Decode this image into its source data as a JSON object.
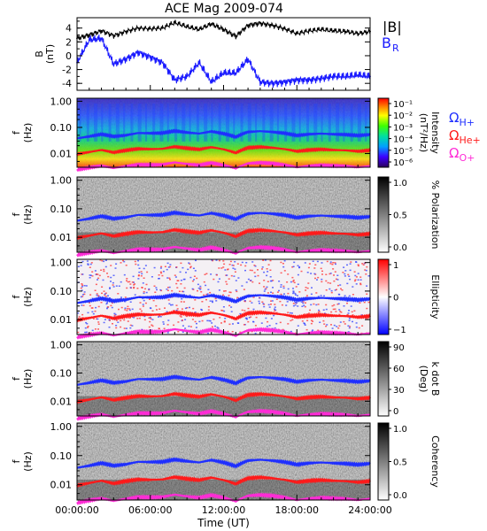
{
  "title": "ACE Mag 2009-074",
  "colors": {
    "bmag": "#000000",
    "br": "#1a1aff",
    "h_plus": "#1f2fff",
    "he_plus": "#ff1a1a",
    "o_plus": "#ff2bd6",
    "axis": "#000000"
  },
  "chart_data": [
    {
      "type": "line",
      "panel": "field",
      "ylabel_line1": "B",
      "ylabel_line2": "(nT)",
      "ylim": [
        -5,
        5.5
      ],
      "yticks": [
        -4,
        -2,
        0,
        2,
        4
      ],
      "legend": {
        "bmag": "|B|",
        "br_main": "B",
        "br_sub": "R"
      },
      "x": [
        0,
        1,
        2,
        3,
        4,
        5,
        6,
        7,
        8,
        9,
        10,
        11,
        12,
        13,
        14,
        15,
        16,
        17,
        18,
        19,
        20,
        21,
        22,
        23,
        24
      ],
      "series": [
        {
          "name": "|B|",
          "color": "#000000",
          "values": [
            2.5,
            3.0,
            3.6,
            2.9,
            3.5,
            4.0,
            3.9,
            4.0,
            4.8,
            4.2,
            3.8,
            4.6,
            3.8,
            2.8,
            4.4,
            4.7,
            4.4,
            3.9,
            3.2,
            3.6,
            3.8,
            3.6,
            3.5,
            3.2,
            3.5
          ]
        },
        {
          "name": "B_R",
          "color": "#1a1aff",
          "values": [
            -1.0,
            2.3,
            2.5,
            -1.2,
            -0.5,
            0.5,
            -0.2,
            -1.0,
            -3.5,
            -3.0,
            -1.0,
            -3.8,
            -2.5,
            -2.5,
            -0.5,
            -3.8,
            -4.0,
            -3.8,
            -3.5,
            -3.5,
            -3.3,
            -3.0,
            -3.0,
            -2.8,
            -3.0
          ]
        }
      ]
    },
    {
      "type": "heatmap",
      "panel": "intensity",
      "ylabel_line1": "f",
      "ylabel_line2": "(Hz)",
      "yticks": [
        "1.00",
        "0.10",
        "0.01"
      ],
      "colorbar_label_line1": "Intensity",
      "colorbar_label_line2": "(nT²/Hz)",
      "colorbar_ticks": [
        "10⁻¹",
        "10⁻²",
        "10⁻³",
        "10⁻⁴",
        "10⁻⁵",
        "10⁻⁶"
      ],
      "gyro_labels": [
        "ΩH+",
        "ΩHe+",
        "ΩO+"
      ]
    },
    {
      "type": "heatmap",
      "panel": "polarization",
      "ylabel_line1": "f",
      "ylabel_line2": "(Hz)",
      "yticks": [
        "1.00",
        "0.10",
        "0.01"
      ],
      "colorbar_label_line1": "% Polarization",
      "colorbar_label_line2": "",
      "colorbar_ticks": [
        "1.0",
        "0.5",
        "0.0"
      ]
    },
    {
      "type": "heatmap",
      "panel": "ellipticity",
      "ylabel_line1": "f",
      "ylabel_line2": "(Hz)",
      "yticks": [
        "1.00",
        "0.10",
        "0.01"
      ],
      "colorbar_label_line1": "Ellipticity",
      "colorbar_label_line2": "",
      "colorbar_ticks": [
        "1",
        "0",
        "−1"
      ]
    },
    {
      "type": "heatmap",
      "panel": "kdotb",
      "ylabel_line1": "f",
      "ylabel_line2": "(Hz)",
      "yticks": [
        "1.00",
        "0.10",
        "0.01"
      ],
      "colorbar_label_line1": "k dot B",
      "colorbar_label_line2": "(Deg)",
      "colorbar_ticks": [
        "90",
        "60",
        "30",
        "0"
      ]
    },
    {
      "type": "heatmap",
      "panel": "coherency",
      "ylabel_line1": "f",
      "ylabel_line2": "(Hz)",
      "yticks": [
        "1.00",
        "0.10",
        "0.01"
      ],
      "colorbar_label_line1": "Coherency",
      "colorbar_label_line2": "",
      "colorbar_ticks": [
        "1.0",
        "0.5",
        "0.0"
      ]
    },
    {
      "type": "line",
      "panel": "gyrofrequencies",
      "x": [
        0,
        1,
        2,
        3,
        4,
        5,
        6,
        7,
        8,
        9,
        10,
        11,
        12,
        13,
        14,
        15,
        16,
        17,
        18,
        19,
        20,
        21,
        22,
        23,
        24
      ],
      "series": [
        {
          "name": "ΩH+",
          "color": "#1f2fff",
          "values": [
            0.038,
            0.045,
            0.055,
            0.045,
            0.05,
            0.061,
            0.06,
            0.061,
            0.073,
            0.064,
            0.058,
            0.07,
            0.058,
            0.043,
            0.067,
            0.072,
            0.067,
            0.06,
            0.049,
            0.055,
            0.058,
            0.055,
            0.053,
            0.049,
            0.053
          ]
        },
        {
          "name": "ΩHe+",
          "color": "#ff1a1a",
          "values": [
            0.0095,
            0.0114,
            0.0137,
            0.011,
            0.0133,
            0.0152,
            0.0148,
            0.0152,
            0.0183,
            0.016,
            0.0145,
            0.0175,
            0.0145,
            0.0106,
            0.0167,
            0.0179,
            0.0167,
            0.0148,
            0.0122,
            0.0137,
            0.0145,
            0.0137,
            0.0133,
            0.0122,
            0.0133
          ]
        },
        {
          "name": "ΩO+",
          "color": "#ff2bd6",
          "values": [
            0.0024,
            0.0029,
            0.0034,
            0.0028,
            0.0033,
            0.0038,
            0.0037,
            0.0038,
            0.0046,
            0.004,
            0.0036,
            0.0044,
            0.0036,
            0.0027,
            0.0042,
            0.0045,
            0.0042,
            0.0037,
            0.003,
            0.0034,
            0.0036,
            0.0034,
            0.0033,
            0.003,
            0.0033
          ]
        }
      ]
    }
  ],
  "xaxis": {
    "label": "Time (UT)",
    "tick_values": [
      0,
      6,
      12,
      18,
      24
    ],
    "tick_labels": [
      "00:00:00",
      "06:00:00",
      "12:00:00",
      "18:00:00",
      "24:00:00"
    ]
  }
}
